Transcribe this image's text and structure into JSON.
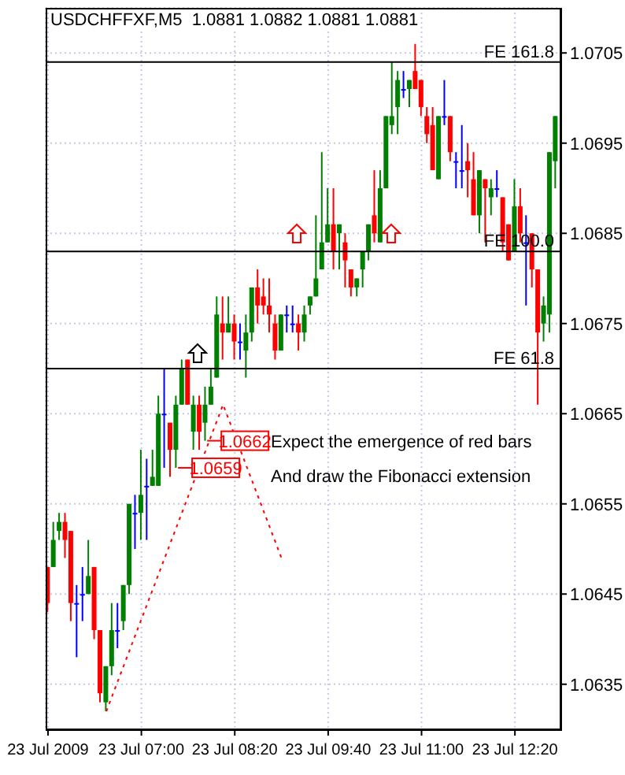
{
  "chart_data": {
    "type": "candlestick",
    "title": "USDCHFFXF,M5  1.0881 1.0882 1.0881 1.0881",
    "x": [
      "2009-07-23T05:40",
      "2009-07-23T05:45",
      "2009-07-23T05:50",
      "2009-07-23T05:55",
      "2009-07-23T06:00",
      "2009-07-23T06:05",
      "2009-07-23T06:10",
      "2009-07-23T06:15",
      "2009-07-23T06:20",
      "2009-07-23T06:25",
      "2009-07-23T06:30",
      "2009-07-23T06:35",
      "2009-07-23T06:40",
      "2009-07-23T06:45",
      "2009-07-23T06:50",
      "2009-07-23T06:55",
      "2009-07-23T07:00",
      "2009-07-23T07:05",
      "2009-07-23T07:10",
      "2009-07-23T07:15",
      "2009-07-23T07:20",
      "2009-07-23T07:25",
      "2009-07-23T07:30",
      "2009-07-23T07:35",
      "2009-07-23T07:40",
      "2009-07-23T07:45",
      "2009-07-23T07:50",
      "2009-07-23T07:55",
      "2009-07-23T08:00",
      "2009-07-23T08:05",
      "2009-07-23T08:10",
      "2009-07-23T08:15",
      "2009-07-23T08:20",
      "2009-07-23T08:25",
      "2009-07-23T08:30",
      "2009-07-23T08:35",
      "2009-07-23T08:40",
      "2009-07-23T08:45",
      "2009-07-23T08:50",
      "2009-07-23T08:55",
      "2009-07-23T09:00",
      "2009-07-23T09:05",
      "2009-07-23T09:10",
      "2009-07-23T09:15",
      "2009-07-23T09:20",
      "2009-07-23T09:25",
      "2009-07-23T09:30",
      "2009-07-23T09:35",
      "2009-07-23T09:40",
      "2009-07-23T09:45",
      "2009-07-23T09:50",
      "2009-07-23T09:55",
      "2009-07-23T10:00",
      "2009-07-23T10:05",
      "2009-07-23T10:10",
      "2009-07-23T10:15",
      "2009-07-23T10:20",
      "2009-07-23T10:25",
      "2009-07-23T10:30",
      "2009-07-23T10:35",
      "2009-07-23T10:40",
      "2009-07-23T10:45",
      "2009-07-23T10:50",
      "2009-07-23T10:55",
      "2009-07-23T11:00",
      "2009-07-23T11:05",
      "2009-07-23T11:10",
      "2009-07-23T11:15",
      "2009-07-23T11:20",
      "2009-07-23T11:25",
      "2009-07-23T11:30",
      "2009-07-23T11:35",
      "2009-07-23T11:40",
      "2009-07-23T11:45",
      "2009-07-23T11:50",
      "2009-07-23T11:55",
      "2009-07-23T12:00",
      "2009-07-23T12:05",
      "2009-07-23T12:10",
      "2009-07-23T12:15",
      "2009-07-23T12:20",
      "2009-07-23T12:25",
      "2009-07-23T12:30",
      "2009-07-23T12:35",
      "2009-07-23T12:40",
      "2009-07-23T12:45",
      "2009-07-23T12:50",
      "2009-07-23T12:55"
    ],
    "ohlc": [
      [
        1.0648,
        1.0648,
        1.0643,
        1.0644
      ],
      [
        1.0648,
        1.0653,
        1.0648,
        1.0651
      ],
      [
        1.0652,
        1.0654,
        1.0651,
        1.0653
      ],
      [
        1.0653,
        1.0654,
        1.0649,
        1.0651
      ],
      [
        1.0652,
        1.0652,
        1.0642,
        1.0644
      ],
      [
        1.0644,
        1.0646,
        1.0638,
        1.0644
      ],
      [
        1.0645,
        1.0648,
        1.0642,
        1.0645
      ],
      [
        1.0645,
        1.0651,
        1.0645,
        1.0647
      ],
      [
        1.0648,
        1.0648,
        1.064,
        1.0641
      ],
      [
        1.0641,
        1.0641,
        1.0633,
        1.0634
      ],
      [
        1.0633,
        1.0637,
        1.0632,
        1.0637
      ],
      [
        1.0637,
        1.0644,
        1.0636,
        1.0641
      ],
      [
        1.0641,
        1.0644,
        1.0639,
        1.0641
      ],
      [
        1.0642,
        1.0646,
        1.0641,
        1.0646
      ],
      [
        1.0646,
        1.0655,
        1.0645,
        1.0655
      ],
      [
        1.0654,
        1.0656,
        1.065,
        1.0654
      ],
      [
        1.0654,
        1.0661,
        1.0651,
        1.0656
      ],
      [
        1.0657,
        1.066,
        1.0651,
        1.0657
      ],
      [
        1.0657,
        1.0661,
        1.0657,
        1.0658
      ],
      [
        1.0657,
        1.0667,
        1.0657,
        1.0665
      ],
      [
        1.0665,
        1.067,
        1.0659,
        1.0665
      ],
      [
        1.0664,
        1.0664,
        1.0658,
        1.0661
      ],
      [
        1.0661,
        1.0667,
        1.0659,
        1.0666
      ],
      [
        1.0666,
        1.0671,
        1.0666,
        1.067
      ],
      [
        1.0671,
        1.0671,
        1.0666,
        1.0666
      ],
      [
        1.0663,
        1.0667,
        1.0661,
        1.0666
      ],
      [
        1.0666,
        1.0667,
        1.0661,
        1.0663
      ],
      [
        1.0664,
        1.0668,
        1.0662,
        1.0666
      ],
      [
        1.0666,
        1.067,
        1.0666,
        1.0668
      ],
      [
        1.0669,
        1.0678,
        1.0669,
        1.0676
      ],
      [
        1.0675,
        1.0678,
        1.0671,
        1.0674
      ],
      [
        1.0674,
        1.0678,
        1.0674,
        1.0675
      ],
      [
        1.0675,
        1.0676,
        1.0671,
        1.0673
      ],
      [
        1.0673,
        1.0675,
        1.0671,
        1.0673
      ],
      [
        1.0672,
        1.0676,
        1.0669,
        1.0674
      ],
      [
        1.0674,
        1.0679,
        1.0673,
        1.0679
      ],
      [
        1.0679,
        1.0681,
        1.0675,
        1.0677
      ],
      [
        1.0678,
        1.068,
        1.0676,
        1.0677
      ],
      [
        1.0677,
        1.068,
        1.0674,
        1.0676
      ],
      [
        1.0675,
        1.0676,
        1.0671,
        1.0672
      ],
      [
        1.0672,
        1.0676,
        1.0672,
        1.0676
      ],
      [
        1.0676,
        1.0677,
        1.0674,
        1.0676
      ],
      [
        1.0675,
        1.0677,
        1.0674,
        1.0675
      ],
      [
        1.0675,
        1.0676,
        1.0672,
        1.0674
      ],
      [
        1.0674,
        1.0677,
        1.0673,
        1.0676
      ],
      [
        1.0677,
        1.0678,
        1.0676,
        1.0678
      ],
      [
        1.0678,
        1.0687,
        1.0678,
        1.068
      ],
      [
        1.0681,
        1.0694,
        1.0681,
        1.0684
      ],
      [
        1.0684,
        1.069,
        1.0684,
        1.0686
      ],
      [
        1.0686,
        1.069,
        1.0681,
        1.0683
      ],
      [
        1.0685,
        1.0686,
        1.0681,
        1.0686
      ],
      [
        1.0684,
        1.0685,
        1.0679,
        1.0682
      ],
      [
        1.0681,
        1.0681,
        1.0678,
        1.0679
      ],
      [
        1.0679,
        1.068,
        1.0678,
        1.068
      ],
      [
        1.0681,
        1.0683,
        1.0679,
        1.0683
      ],
      [
        1.0683,
        1.0686,
        1.0682,
        1.0686
      ],
      [
        1.0687,
        1.0692,
        1.0684,
        1.0685
      ],
      [
        1.0684,
        1.0692,
        1.0684,
        1.069
      ],
      [
        1.069,
        1.0698,
        1.069,
        1.0698
      ],
      [
        1.0697,
        1.0704,
        1.0696,
        1.0698
      ],
      [
        1.0699,
        1.0703,
        1.0696,
        1.0702
      ],
      [
        1.0701,
        1.0703,
        1.07,
        1.0701
      ],
      [
        1.0701,
        1.0702,
        1.0699,
        1.0702
      ],
      [
        1.0703,
        1.0706,
        1.0701,
        1.0701
      ],
      [
        1.0702,
        1.0702,
        1.0698,
        1.0699
      ],
      [
        1.0698,
        1.0699,
        1.0695,
        1.0696
      ],
      [
        1.0697,
        1.0699,
        1.0692,
        1.0692
      ],
      [
        1.0691,
        1.0698,
        1.0691,
        1.0698
      ],
      [
        1.0698,
        1.0702,
        1.0697,
        1.0698
      ],
      [
        1.0698,
        1.0698,
        1.0693,
        1.0694
      ],
      [
        1.0693,
        1.0694,
        1.069,
        1.0693
      ],
      [
        1.0692,
        1.0697,
        1.069,
        1.0692
      ],
      [
        1.0693,
        1.0695,
        1.0689,
        1.0692
      ],
      [
        1.0691,
        1.0694,
        1.0687,
        1.0687
      ],
      [
        1.0687,
        1.0692,
        1.0685,
        1.0692
      ],
      [
        1.0691,
        1.0691,
        1.0684,
        1.069
      ],
      [
        1.0689,
        1.0691,
        1.0687,
        1.069
      ],
      [
        1.069,
        1.0692,
        1.0689,
        1.069
      ],
      [
        1.0689,
        1.0689,
        1.0683,
        1.0684
      ],
      [
        1.0686,
        1.0686,
        1.0682,
        1.0682
      ],
      [
        1.0683,
        1.0691,
        1.0683,
        1.0688
      ],
      [
        1.0688,
        1.069,
        1.0684,
        1.0685
      ],
      [
        1.0684,
        1.0687,
        1.0677,
        1.0684
      ],
      [
        1.0685,
        1.0685,
        1.0679,
        1.0681
      ],
      [
        1.0681,
        1.0681,
        1.0666,
        1.0674
      ],
      [
        1.0675,
        1.0678,
        1.0673,
        1.0677
      ],
      [
        1.0676,
        1.0694,
        1.0674,
        1.0694
      ],
      [
        1.0693,
        1.0698,
        1.069,
        1.0698
      ]
    ],
    "colors": [
      "#ff0000",
      "#008000",
      "#008000",
      "#ff0000",
      "#ff0000",
      "#0000ff",
      "#0000ff",
      "#008000",
      "#ff0000",
      "#ff0000",
      "#008000",
      "#008000",
      "#0000ff",
      "#008000",
      "#008000",
      "#0000ff",
      "#008000",
      "#0000ff",
      "#008000",
      "#008000",
      "#0000ff",
      "#ff0000",
      "#008000",
      "#008000",
      "#ff0000",
      "#008000",
      "#ff0000",
      "#008000",
      "#008000",
      "#008000",
      "#ff0000",
      "#008000",
      "#ff0000",
      "#0000ff",
      "#008000",
      "#008000",
      "#ff0000",
      "#ff0000",
      "#ff0000",
      "#ff0000",
      "#008000",
      "#0000ff",
      "#0000ff",
      "#ff0000",
      "#008000",
      "#008000",
      "#008000",
      "#008000",
      "#008000",
      "#ff0000",
      "#008000",
      "#ff0000",
      "#ff0000",
      "#008000",
      "#008000",
      "#008000",
      "#ff0000",
      "#008000",
      "#008000",
      "#008000",
      "#008000",
      "#0000ff",
      "#008000",
      "#ff0000",
      "#ff0000",
      "#ff0000",
      "#ff0000",
      "#008000",
      "#0000ff",
      "#ff0000",
      "#0000ff",
      "#0000ff",
      "#ff0000",
      "#ff0000",
      "#008000",
      "#ff0000",
      "#008000",
      "#0000ff",
      "#ff0000",
      "#ff0000",
      "#008000",
      "#ff0000",
      "#0000ff",
      "#ff0000",
      "#ff0000",
      "#008000",
      "#008000",
      "#008000"
    ],
    "series": [
      {
        "type": "line",
        "color": "#ff0000",
        "line_style": "dotted",
        "x": [
          "2009-07-23T06:30",
          "2009-07-23T08:10",
          "2009-07-23T09:00"
        ],
        "values": [
          1.0632,
          1.0666,
          1.0649
        ]
      }
    ],
    "xlim": [
      "2009-07-23T05:38",
      "2009-07-23T12:59"
    ],
    "xticks": [
      {
        "value": "2009-07-23T05:40",
        "label": "23 Jul 2009"
      },
      {
        "value": "2009-07-23T07:00",
        "label": "23 Jul 07:00"
      },
      {
        "value": "2009-07-23T08:20",
        "label": "23 Jul 08:20"
      },
      {
        "value": "2009-07-23T09:40",
        "label": "23 Jul 09:40"
      },
      {
        "value": "2009-07-23T11:00",
        "label": "23 Jul 11:00"
      },
      {
        "value": "2009-07-23T12:20",
        "label": "23 Jul 12:20"
      }
    ],
    "ylim": [
      1.063,
      1.071
    ],
    "yticks": [
      1.0635,
      1.0645,
      1.0655,
      1.0665,
      1.0675,
      1.0685,
      1.0695,
      1.0705
    ],
    "grid": true,
    "ref_lines": [
      {
        "axis": "y",
        "value": 1.0704,
        "label": "FE 161.8",
        "color": "#000000"
      },
      {
        "axis": "y",
        "value": 1.0683,
        "label": "FE 100.0",
        "color": "#000000"
      },
      {
        "axis": "y",
        "value": 1.067,
        "label": "FE 61.8",
        "color": "#000000"
      }
    ],
    "annotations": [
      {
        "text": "1.0662",
        "x": "2009-07-23T07:55",
        "y": 1.0662
      },
      {
        "text": "1.0659",
        "x": "2009-07-23T07:30",
        "y": 1.0659
      },
      "Expect the emergence of red bars",
      "And draw the Fibonacci extension"
    ]
  }
}
